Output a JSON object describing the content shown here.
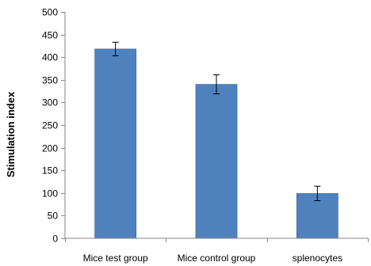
{
  "chart_data": {
    "type": "bar",
    "title": "",
    "xlabel": "",
    "ylabel": "Stimulation index",
    "categories": [
      "Mice test group",
      "Mice control group",
      "splenocytes"
    ],
    "values": [
      418,
      340,
      99
    ],
    "error": [
      15,
      21,
      16
    ],
    "ylim": [
      0,
      500
    ],
    "yticks": [
      0,
      50,
      100,
      150,
      200,
      250,
      300,
      350,
      400,
      450,
      500
    ],
    "ytick_labels": [
      "0",
      "50",
      "100",
      "150",
      "200",
      "250",
      "300",
      "350",
      "400",
      "450",
      "500"
    ],
    "grid": false,
    "legend": "none",
    "bar_color": "#4F81BD",
    "bar_edge_color": "#3C6A9E",
    "axis_color": "#868686"
  }
}
